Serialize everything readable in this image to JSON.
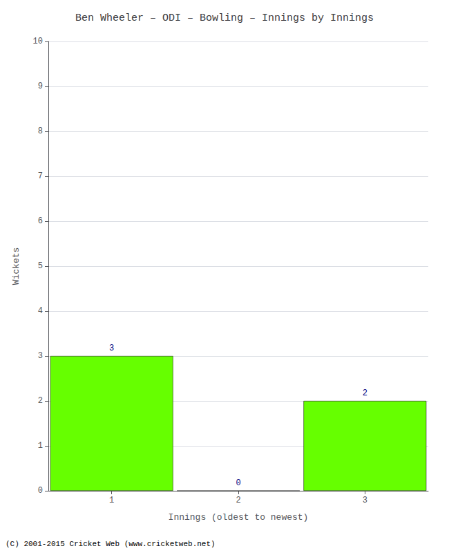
{
  "chart_data": {
    "type": "bar",
    "title": "Ben Wheeler – ODI – Bowling – Innings by Innings",
    "x_label": "Innings (oldest to newest)",
    "y_label": "Wickets",
    "categories": [
      1,
      2,
      3
    ],
    "values": [
      3,
      0,
      2
    ],
    "color": "#66ff00",
    "ylim": [
      0,
      10
    ],
    "yticks": [
      0,
      1,
      2,
      3,
      4,
      5,
      6,
      7,
      8,
      9,
      10
    ],
    "grid": true,
    "data_labels": true,
    "footnote": "(C) 2001-2015 Cricket Web (www.cricketweb.net)"
  }
}
